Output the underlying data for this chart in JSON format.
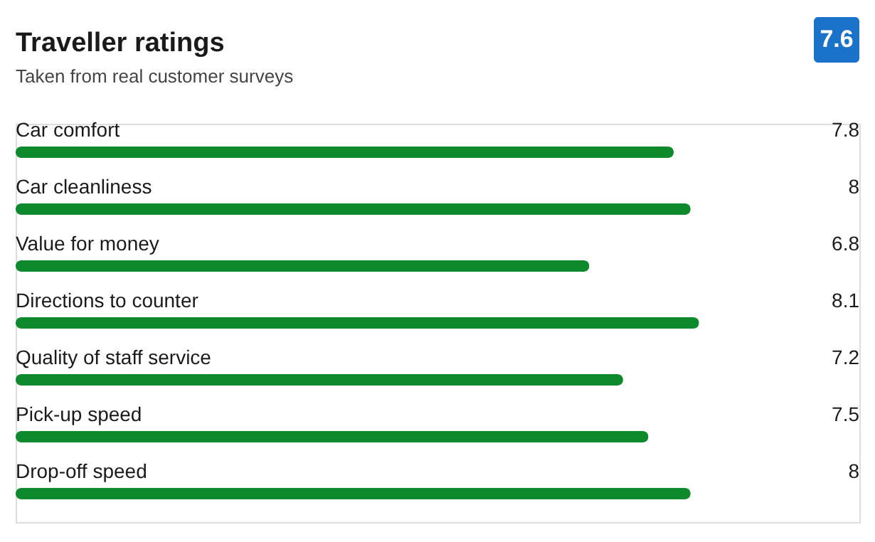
{
  "chart_data": {
    "type": "bar",
    "orientation": "horizontal",
    "title": "Traveller ratings",
    "subtitle": "Taken from real customer surveys",
    "categories": [
      "Car comfort",
      "Car cleanliness",
      "Value for money",
      "Directions to counter",
      "Quality of staff service",
      "Pick-up speed",
      "Drop-off speed"
    ],
    "values": [
      7.8,
      8,
      6.8,
      8.1,
      7.2,
      7.5,
      8
    ],
    "color": "#0e8a2c",
    "xlim": [
      0,
      10
    ],
    "data_labels": true,
    "tick_labels": false,
    "annotations": [
      "7.6"
    ]
  }
}
